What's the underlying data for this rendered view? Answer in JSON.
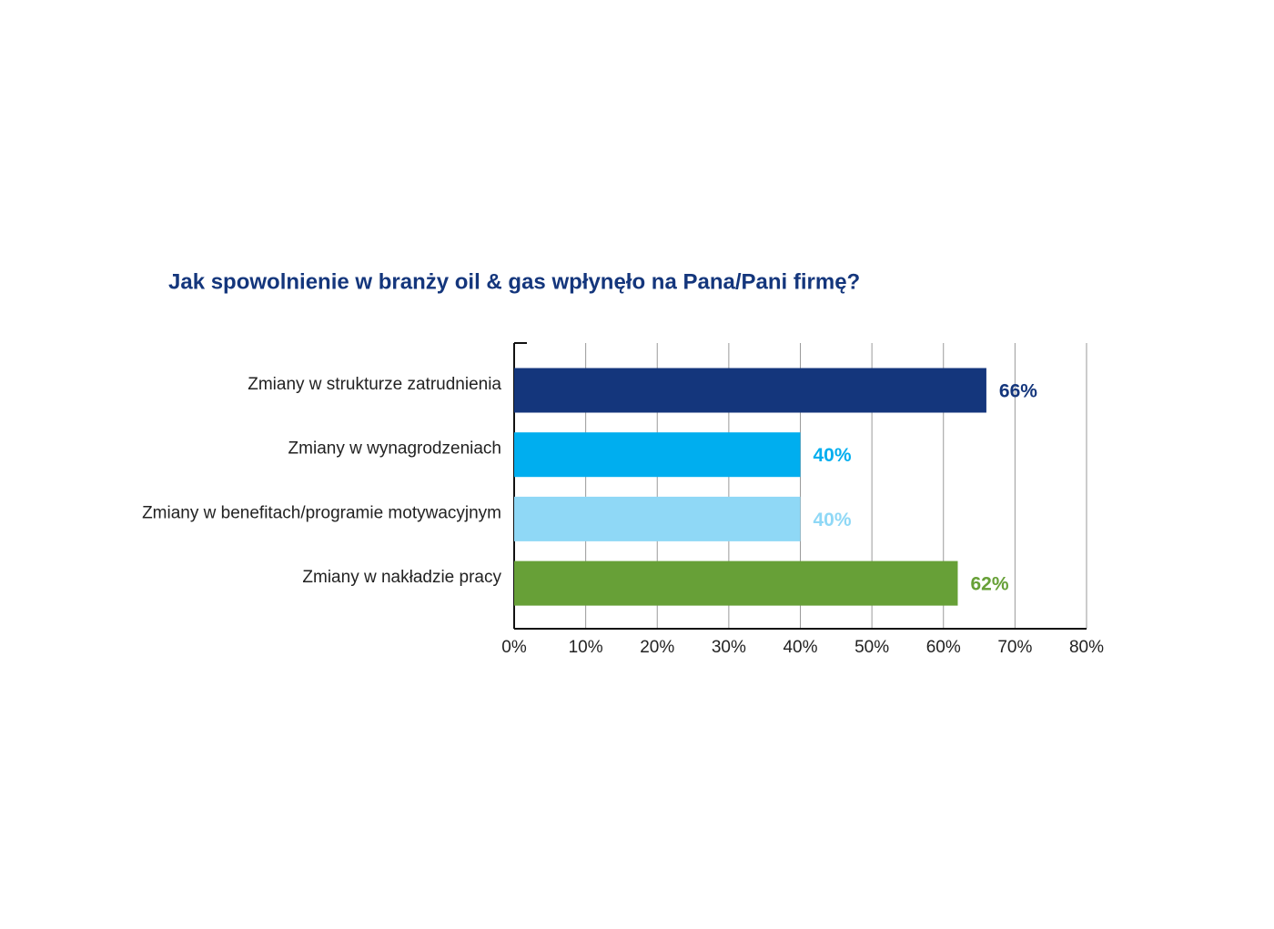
{
  "chart_data": {
    "type": "bar",
    "orientation": "horizontal",
    "title": "Jak spowolnienie w branży oil & gas wpłynęło na Pana/Pani firmę?",
    "categories": [
      "Zmiany w strukturze zatrudnienia",
      "Zmiany w wynagrodzeniach",
      "Zmiany w benefitach/programie motywacyjnym",
      "Zmiany w nakładzie pracy"
    ],
    "values": [
      66,
      40,
      40,
      62
    ],
    "value_labels": [
      "66%",
      "40%",
      "40%",
      "62%"
    ],
    "colors": [
      "#14367c",
      "#00aeef",
      "#8fd8f6",
      "#67a037"
    ],
    "xlim": [
      0,
      80
    ],
    "xticks": [
      {
        "value": 0,
        "label": "0%"
      },
      {
        "value": 10,
        "label": "10%"
      },
      {
        "value": 20,
        "label": "20%"
      },
      {
        "value": 30,
        "label": "30%"
      },
      {
        "value": 40,
        "label": "40%"
      },
      {
        "value": 50,
        "label": "50%"
      },
      {
        "value": 60,
        "label": "60%"
      },
      {
        "value": 70,
        "label": "70%"
      },
      {
        "value": 80,
        "label": "80%"
      }
    ],
    "grid": true
  }
}
